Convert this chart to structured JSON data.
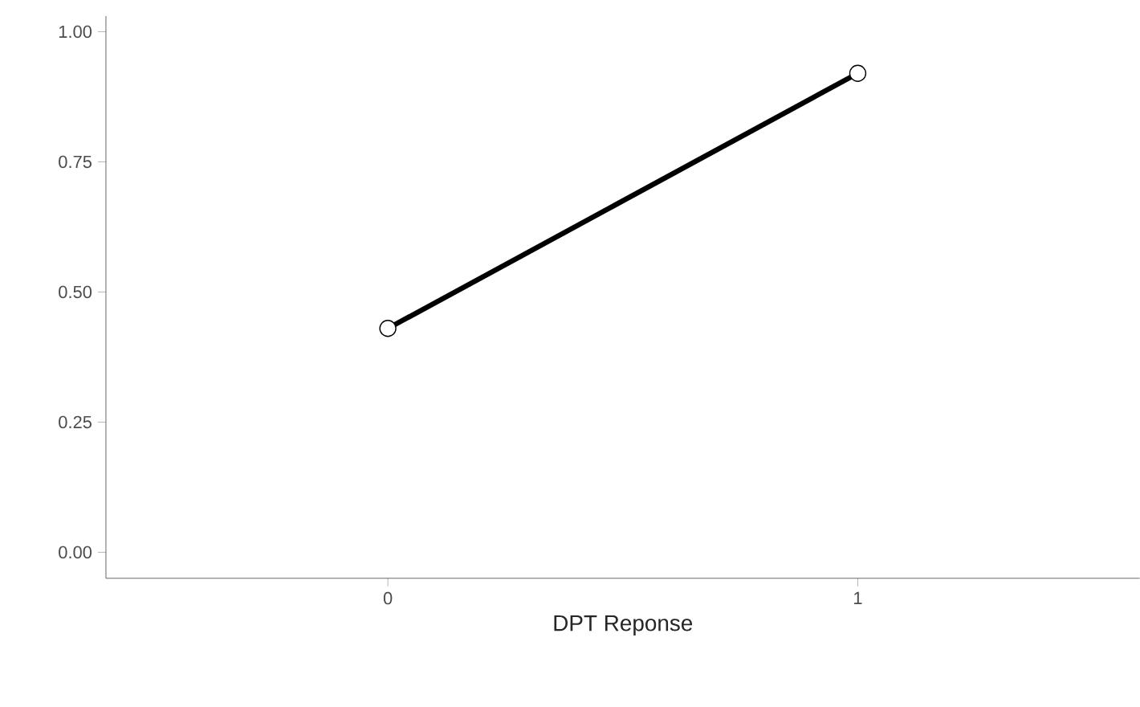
{
  "chart_data": {
    "type": "line",
    "xlabel": "DPT Reponse",
    "x": [
      0,
      1
    ],
    "series": [
      {
        "color": "#000000",
        "values": [
          0.43,
          0.92
        ]
      }
    ],
    "xlim": [
      -0.6,
      1.6
    ],
    "xticks": [
      0,
      1
    ],
    "ylim": [
      -0.05,
      1.03
    ],
    "yticks": [
      {
        "value": 0,
        "label": "0.00"
      },
      {
        "value": 0.25,
        "label": "0.25"
      },
      {
        "value": 0.5,
        "label": "0.50"
      },
      {
        "value": 0.75,
        "label": "0.75"
      },
      {
        "value": 1,
        "label": "1.00"
      }
    ],
    "marker": "circle",
    "line_style": "solid",
    "grid": false
  }
}
